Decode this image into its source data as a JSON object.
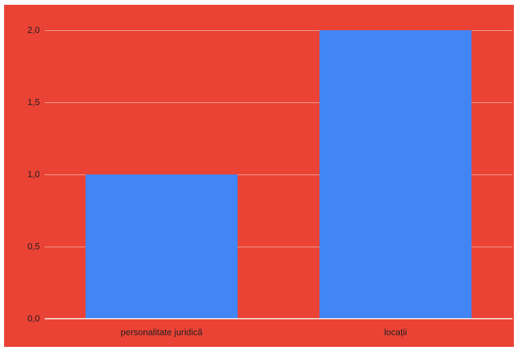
{
  "chart_data": {
    "type": "bar",
    "categories": [
      "personalitate juridică",
      "locații"
    ],
    "values": [
      1,
      2
    ],
    "ylim": [
      0,
      2
    ],
    "yticks": [
      "0,0",
      "0,5",
      "1,0",
      "1,5",
      "2,0"
    ],
    "ytick_values": [
      0,
      0.5,
      1,
      1.5,
      2
    ],
    "grid": true,
    "legend": "none",
    "colors": {
      "background": "#ea4335",
      "bar": "#4285f4",
      "gridline": "#f3a49c",
      "axis": "#ffffff",
      "text": "#1f1f1f"
    }
  }
}
